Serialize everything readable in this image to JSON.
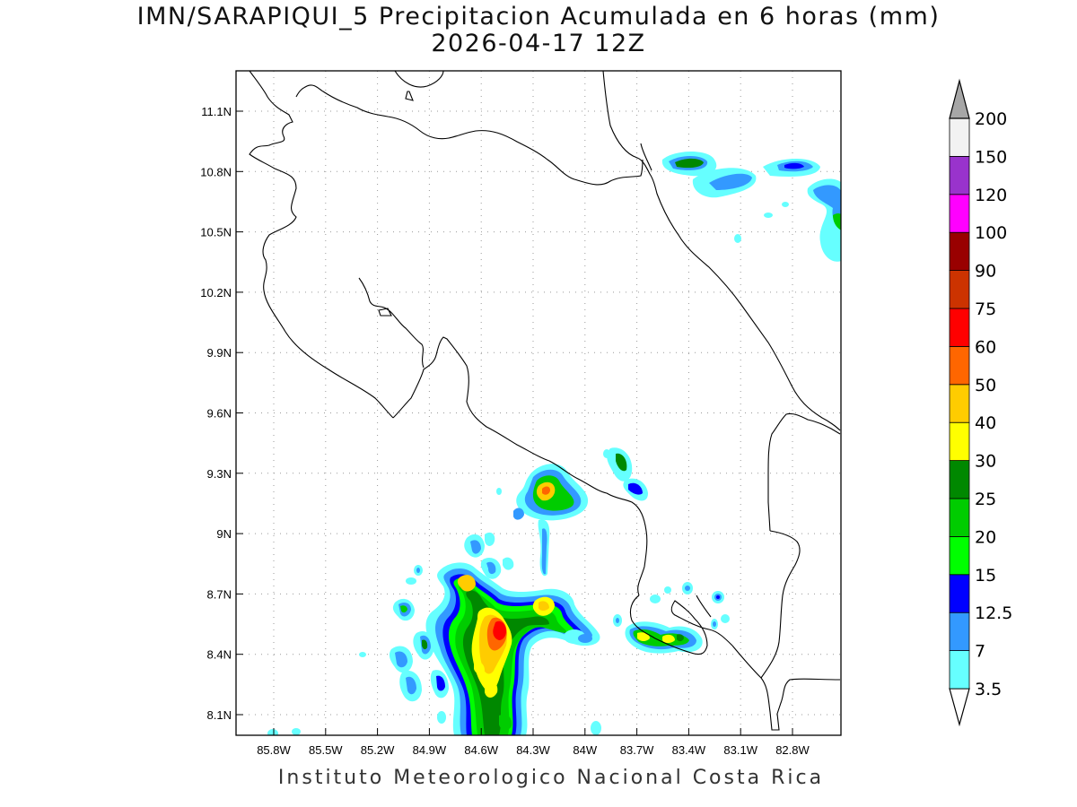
{
  "title": {
    "line1": "IMN/SARAPIQUI_5 Precipitacion Acumulada en 6 horas (mm)",
    "line2": "2026-04-17 12Z"
  },
  "footer": "Instituto Meteorologico Nacional Costa Rica",
  "map": {
    "lat_ticks": [
      "11.1N",
      "10.8N",
      "10.5N",
      "10.2N",
      "9.9N",
      "9.6N",
      "9.3N",
      "9N",
      "8.7N",
      "8.4N",
      "8.1N"
    ],
    "lon_ticks": [
      "85.8W",
      "85.5W",
      "85.2W",
      "84.9W",
      "84.6W",
      "84.3W",
      "84W",
      "83.7W",
      "83.4W",
      "83.1W",
      "82.8W"
    ],
    "grid": "dotted"
  },
  "colorbar": {
    "labels": [
      "3.5",
      "7",
      "12.5",
      "15",
      "20",
      "25",
      "30",
      "40",
      "50",
      "60",
      "75",
      "90",
      "100",
      "120",
      "150",
      "200"
    ],
    "colors": [
      "#66ffff",
      "#3399ff",
      "#0000ff",
      "#00ff00",
      "#00cc00",
      "#008800",
      "#ffff00",
      "#ffcc00",
      "#ff6600",
      "#ff0000",
      "#cc3300",
      "#990000",
      "#ff00ff",
      "#9933cc",
      "#f2f2f2",
      "#a6a6a6"
    ]
  }
}
